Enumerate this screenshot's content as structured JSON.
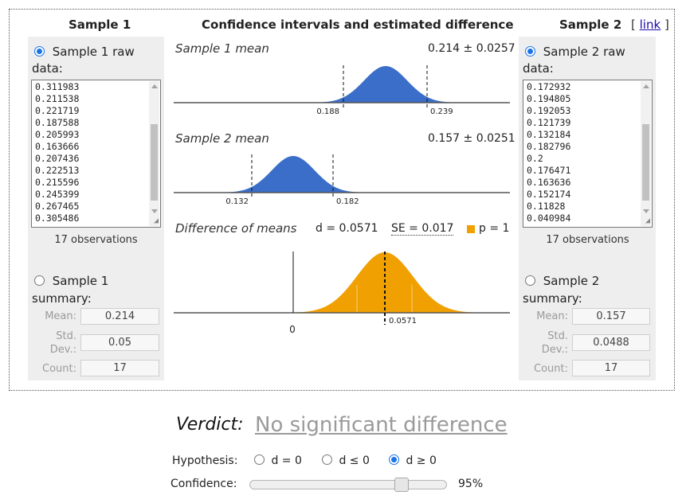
{
  "header": {
    "sample1_title": "Sample 1",
    "center_title": "Confidence intervals and estimated difference",
    "sample2_title": "Sample 2",
    "link_open": "[",
    "link_text": "link",
    "link_close": "]"
  },
  "sample1": {
    "raw_label": "Sample 1 raw",
    "raw_label2": "data:",
    "values": [
      "0.311983",
      "0.211538",
      "0.221719",
      "0.187588",
      "0.205993",
      "0.163666",
      "0.207436",
      "0.222513",
      "0.215596",
      "0.245399",
      "0.267465",
      "0.305486"
    ],
    "observations": "17 observations",
    "summary_label": "Sample 1",
    "summary_label2": "summary:",
    "mean_label": "Mean:",
    "sd_label1": "Std.",
    "sd_label2": "Dev.:",
    "count_label": "Count:",
    "mean": "0.214",
    "sd": "0.05",
    "count": "17"
  },
  "sample2": {
    "raw_label": "Sample 2 raw",
    "raw_label2": "data:",
    "values": [
      "0.172932",
      "0.194805",
      "0.192053",
      "0.121739",
      "0.132184",
      "0.182796",
      "0.2",
      "0.176471",
      "0.163636",
      "0.152174",
      "0.11828",
      "0.040984"
    ],
    "observations": "17 observations",
    "summary_label": "Sample 2",
    "summary_label2": "summary:",
    "mean_label": "Mean:",
    "sd_label1": "Std.",
    "sd_label2": "Dev.:",
    "count_label": "Count:",
    "mean": "0.157",
    "sd": "0.0488",
    "count": "17"
  },
  "center": {
    "s1_title": "Sample 1 mean",
    "s1_value": "0.214 ± 0.0257",
    "s1_low": "0.188",
    "s1_high": "0.239",
    "s2_title": "Sample 2 mean",
    "s2_value": "0.157 ± 0.0251",
    "s2_low": "0.132",
    "s2_high": "0.182",
    "diff_title": "Difference of means",
    "diff_d": "d = 0.0571",
    "diff_se": "SE = 0.017",
    "diff_p": "p = 1",
    "diff_zero": "0",
    "diff_mark": "0.0571"
  },
  "verdict": {
    "label": "Verdict:",
    "value": "No significant difference"
  },
  "controls": {
    "hypothesis_label": "Hypothesis:",
    "options": [
      "d = 0",
      "d ≤ 0",
      "d ≥ 0"
    ],
    "selected": 2,
    "confidence_label": "Confidence:",
    "confidence_value": "95%",
    "confidence_level": 0.95
  },
  "colors": {
    "blue": "#3a6ec8",
    "orange": "#f0a000",
    "accent": "#1a73e8"
  }
}
